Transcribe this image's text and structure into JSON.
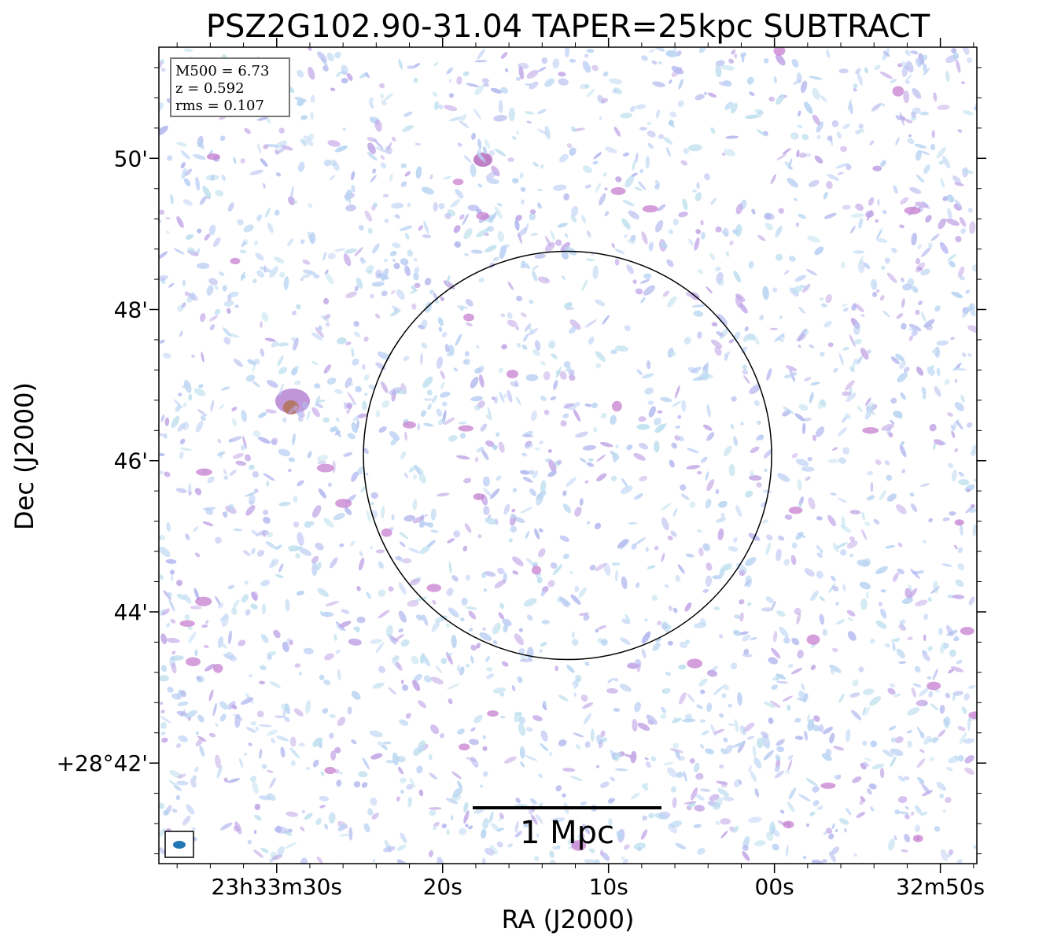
{
  "chart_data": {
    "type": "image",
    "title": "PSZ2G102.90-31.04 TAPER=25kpc SUBTRACT",
    "x_label": "RA (J2000)",
    "y_label": "Dec (J2000)",
    "xlim": [
      37.1,
      -12.2
    ],
    "ylim": [
      40.67,
      51.47
    ],
    "xticks": [
      {
        "value": 30,
        "label": "23h33m30s"
      },
      {
        "value": 20,
        "label": "20s"
      },
      {
        "value": 10,
        "label": "10s"
      },
      {
        "value": 0,
        "label": "00s"
      },
      {
        "value": -10,
        "label": "32m50s"
      }
    ],
    "yticks": [
      {
        "value": 50,
        "label": "50'"
      },
      {
        "value": 48,
        "label": "48'"
      },
      {
        "value": 46,
        "label": "46'"
      },
      {
        "value": 44,
        "label": "44'"
      },
      {
        "value": 42,
        "label": "+28°42'"
      }
    ],
    "info_box": [
      "M500 = 6.73",
      "z = 0.592",
      "rms = 0.107"
    ],
    "circle": {
      "ra": 12.47,
      "dec": 46.07,
      "radius_arcmin": 2.7
    },
    "scalebar_label": "1 Mpc"
  }
}
